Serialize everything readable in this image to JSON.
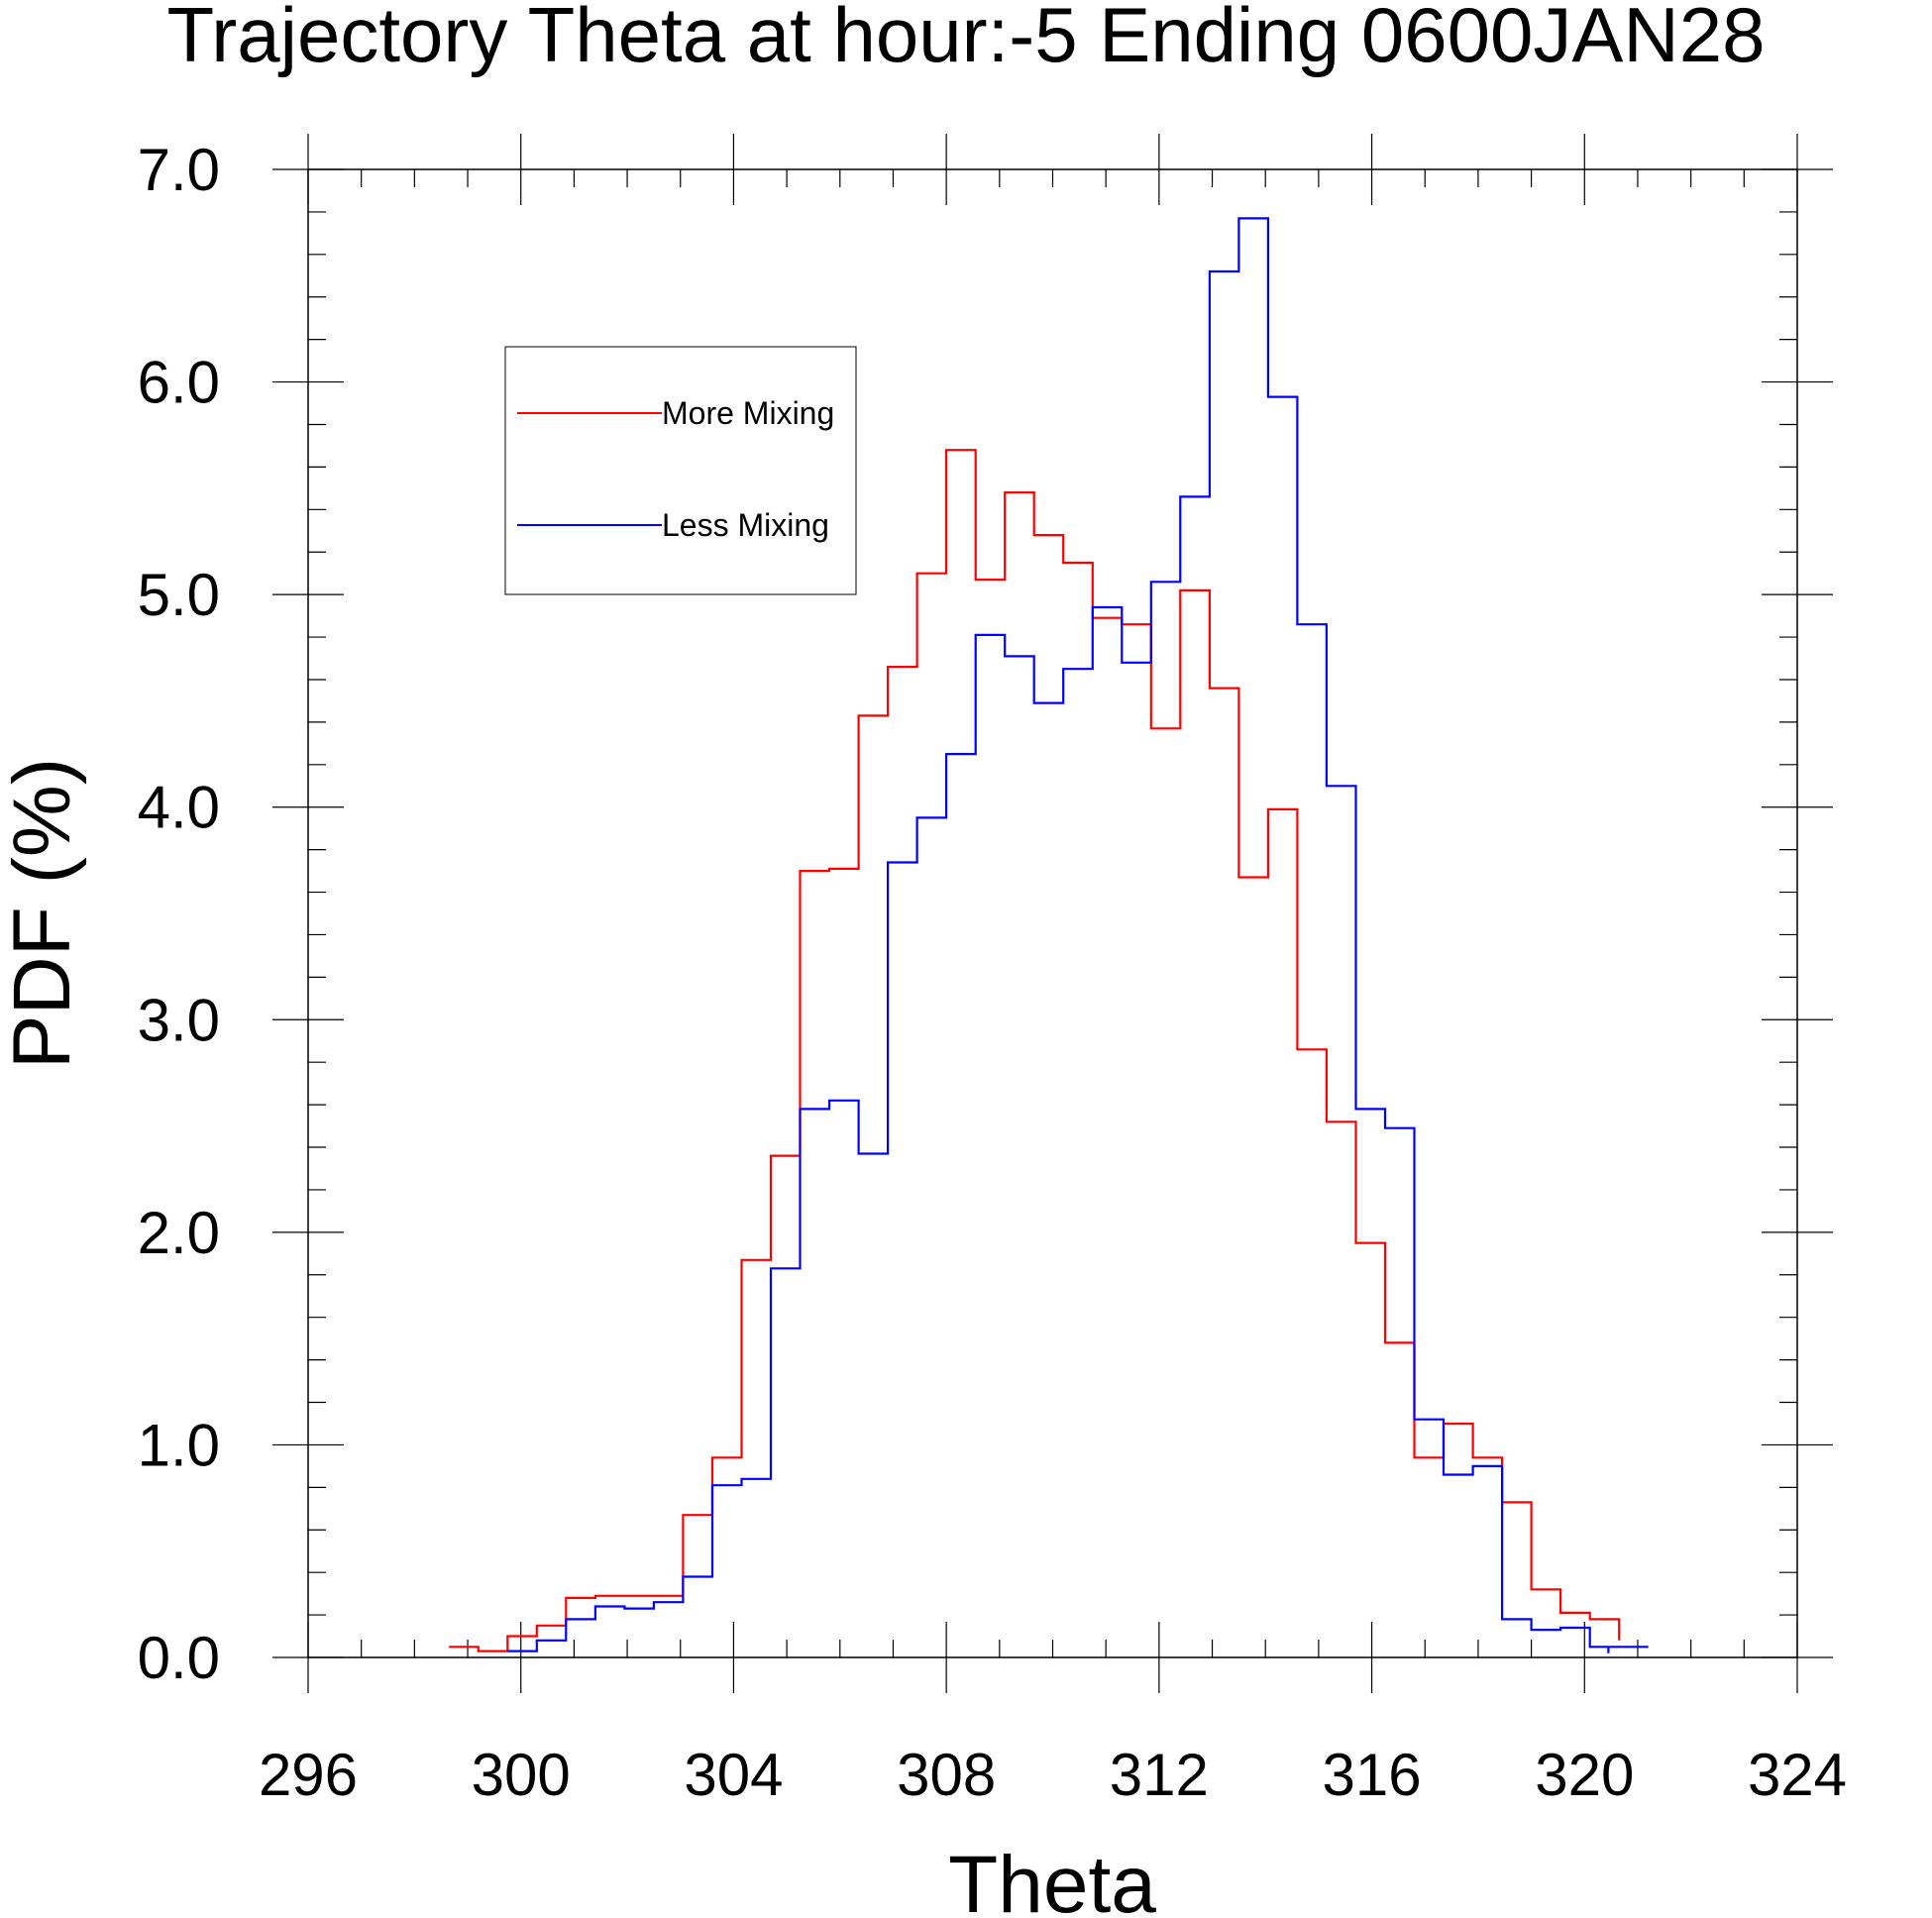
{
  "chart_data": {
    "type": "line",
    "step": true,
    "title": "Trajectory Theta at hour:-5 Ending 0600JAN28",
    "xlabel": "Theta",
    "ylabel": "PDF (%)",
    "xlim": [
      296,
      324
    ],
    "ylim": [
      0,
      7
    ],
    "xticks": [
      "296",
      "300",
      "304",
      "308",
      "312",
      "316",
      "320",
      "324"
    ],
    "yticks": [
      "0.0",
      "1.0",
      "2.0",
      "3.0",
      "4.0",
      "5.0",
      "6.0",
      "7.0"
    ],
    "grid": false,
    "legend": "upper-left",
    "bin_width": 0.55,
    "series": [
      {
        "name": "More Mixing",
        "color": "#ff0000",
        "x_start": 298.65,
        "values": [
          0.05,
          0.03,
          0.1,
          0.15,
          0.28,
          0.29,
          0.29,
          0.29,
          0.67,
          0.94,
          1.87,
          2.36,
          3.7,
          3.71,
          4.43,
          4.66,
          5.1,
          5.68,
          5.07,
          5.48,
          5.28,
          5.15,
          4.89,
          4.86,
          4.37,
          5.02,
          4.56,
          3.67,
          3.99,
          2.86,
          2.52,
          1.95,
          1.48,
          0.94,
          1.1,
          0.94,
          0.73,
          0.32,
          0.21,
          0.18
        ],
        "x_end": 320.65,
        "y_end": 0.08
      },
      {
        "name": "Less Mixing",
        "color": "#0000ff",
        "x_start": 299.75,
        "values": [
          0.03,
          0.08,
          0.18,
          0.24,
          0.23,
          0.26,
          0.38,
          0.81,
          0.84,
          1.83,
          2.58,
          2.62,
          2.37,
          3.74,
          3.95,
          4.25,
          4.81,
          4.71,
          4.49,
          4.65,
          4.94,
          4.68,
          5.06,
          5.46,
          6.52,
          6.77,
          5.93,
          4.86,
          4.1,
          2.58,
          2.49,
          1.12,
          0.86,
          0.9,
          0.18,
          0.13,
          0.14,
          0.05,
          0.05
        ],
        "x_end": 320.45,
        "y_end": 0.02
      }
    ]
  }
}
